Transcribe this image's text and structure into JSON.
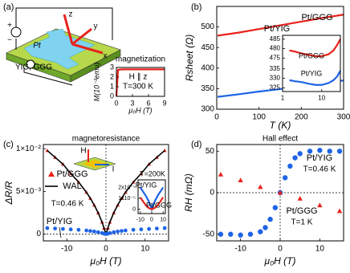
{
  "chart_data": [
    {
      "type": "line",
      "panel_label": "(a)",
      "schematic_labels": [
        "Pt",
        "YIG, GGG",
        "x",
        "y",
        "z",
        "+",
        "−"
      ],
      "title": "magnetization",
      "xlabel": "μ₀H (T)",
      "ylabel": "M(10⁻³emu)",
      "annotations": [
        "H ∥ z",
        "T=300 K"
      ],
      "xlim": [
        0,
        9
      ],
      "ylim": [
        0,
        3
      ],
      "xticks": [
        0,
        3,
        6,
        9
      ],
      "yticks": [
        0,
        1,
        2,
        3
      ],
      "series": [
        {
          "color": "#e8221c",
          "x": [
            0,
            0.3,
            1,
            3,
            5,
            7,
            9
          ],
          "values": [
            0,
            2.75,
            2.8,
            2.8,
            2.8,
            2.8,
            2.8
          ]
        }
      ]
    },
    {
      "type": "line",
      "panel_label": "(b)",
      "xlabel": "T (K)",
      "ylabel": "Rsheet (Ω)",
      "xlim": [
        0,
        300
      ],
      "ylim": [
        300,
        550
      ],
      "xticks": [
        0,
        100,
        200,
        300
      ],
      "yticks": [
        300,
        350,
        400,
        450,
        500
      ],
      "series": [
        {
          "name": "Pt/GGG",
          "color": "#e8221c",
          "x": [
            2,
            50,
            100,
            150,
            200,
            250,
            300
          ],
          "values": [
            479,
            486,
            495,
            504,
            513,
            522,
            530
          ]
        },
        {
          "name": "Pt/YIG",
          "color": "#1e64e6",
          "x": [
            2,
            50,
            100,
            150,
            200,
            250,
            300
          ],
          "values": [
            330,
            336,
            343,
            349,
            356,
            363,
            370
          ]
        }
      ],
      "inset": {
        "type": "broken",
        "xlog": true,
        "xlim": [
          1,
          30
        ],
        "xticks": [
          1,
          10
        ],
        "panels": [
          {
            "ylim": [
              473,
              487
            ],
            "yticks": [
              475,
              480,
              485
            ],
            "series": [
              {
                "name": "Pt/GGG",
                "color": "#e8221c",
                "x": [
                  1.5,
                  2,
                  3,
                  5,
                  7,
                  10,
                  15,
                  20,
                  25,
                  30
                ],
                "values": [
                  479,
                  478.5,
                  477.5,
                  476.5,
                  476,
                  476,
                  477,
                  479,
                  482,
                  485
                ]
              }
            ]
          },
          {
            "ylim": [
              323,
              337
            ],
            "yticks": [
              325,
              330,
              335
            ],
            "series": [
              {
                "name": "Pt/YIG",
                "color": "#1e64e6",
                "x": [
                  1.5,
                  2,
                  3,
                  5,
                  7,
                  10,
                  15,
                  20,
                  25,
                  30
                ],
                "values": [
                  329,
                  328.5,
                  328,
                  327,
                  326.5,
                  326.5,
                  327.5,
                  329,
                  331,
                  334
                ]
              }
            ]
          }
        ]
      }
    },
    {
      "type": "scatter",
      "panel_label": "(c)",
      "title": "magnetoresistance",
      "xlabel": "μ₀H (T)",
      "ylabel": "ΔR/R",
      "schematic_labels": [
        "H",
        "I"
      ],
      "annotations": [
        "T=0.46 K"
      ],
      "xlim": [
        -16,
        16
      ],
      "ylim": [
        -0.0008,
        0.0105
      ],
      "xticks": [
        -10,
        0,
        10
      ],
      "yticks": [
        0,
        {
          "value": 0.005,
          "label": "5×10⁻³"
        },
        {
          "value": 0.01,
          "label": "1×10⁻²"
        }
      ],
      "series": [
        {
          "name": "Pt/GGG",
          "color": "#e8221c",
          "marker": "triangle",
          "x": [
            -15,
            -13,
            -11,
            -9,
            -7,
            -5,
            -4,
            -3,
            -2,
            -1,
            -0.5,
            0,
            0.5,
            1,
            2,
            3,
            4,
            5,
            7,
            9,
            11,
            13,
            15
          ],
          "values": [
            0.0098,
            0.009,
            0.0082,
            0.0071,
            0.0061,
            0.0049,
            0.0042,
            0.0034,
            0.0025,
            0.0014,
            0.0007,
            0,
            0.0007,
            0.0014,
            0.0025,
            0.0034,
            0.0042,
            0.0049,
            0.0061,
            0.0071,
            0.0082,
            0.009,
            0.0098
          ]
        },
        {
          "name": "WAL",
          "color": "#000000",
          "marker": "line",
          "x": [
            -15,
            -13,
            -11,
            -9,
            -7,
            -5,
            -4,
            -3,
            -2,
            -1,
            -0.5,
            0,
            0.5,
            1,
            2,
            3,
            4,
            5,
            7,
            9,
            11,
            13,
            15
          ],
          "values": [
            0.0098,
            0.009,
            0.0082,
            0.0071,
            0.0061,
            0.0049,
            0.0042,
            0.0034,
            0.0025,
            0.0014,
            0.0007,
            0,
            0.0007,
            0.0014,
            0.0025,
            0.0034,
            0.0042,
            0.0049,
            0.0061,
            0.0071,
            0.0082,
            0.009,
            0.0098
          ]
        },
        {
          "name": "Pt/YIG",
          "color": "#1e64e6",
          "marker": "circle",
          "x": [
            -15,
            -13,
            -11,
            -9,
            -7,
            -5,
            -4,
            -3,
            -2,
            -1,
            -0.5,
            0,
            0.5,
            1,
            2,
            3,
            4,
            5,
            7,
            9,
            11,
            13,
            15
          ],
          "values": [
            0.0007,
            0.00065,
            0.0006,
            0.00055,
            0.0005,
            0.00042,
            0.00036,
            0.0003,
            0.00022,
            0.00012,
            5e-05,
            0,
            5e-05,
            0.00012,
            0.00022,
            0.0003,
            0.00036,
            0.00042,
            0.0005,
            0.00055,
            0.0006,
            0.00065,
            0.0007
          ]
        }
      ],
      "inset": {
        "type": "line",
        "annotations": [
          "T=200K"
        ],
        "xlim": [
          -12,
          12
        ],
        "ylim": [
          -4e-06,
          2.7e-05
        ],
        "xticks": [
          -10,
          0,
          10
        ],
        "yticks": [
          0,
          {
            "value": 1e-05,
            "label": "1x10⁻⁵"
          },
          {
            "value": 2e-05,
            "label": "2x10⁻⁵"
          }
        ],
        "series": [
          {
            "name": "Pt/YIG",
            "color": "#1e64e6",
            "x": [
              -10,
              -7.5,
              -5,
              -2.5,
              0,
              2.5,
              5,
              7.5,
              10
            ],
            "values": [
              2e-05,
              1.6e-05,
              1.2e-05,
              7e-06,
              0,
              7e-06,
              1.2e-05,
              1.6e-05,
              2e-05
            ]
          },
          {
            "name": "Pt/GGG",
            "color": "#e8221c",
            "x": [
              -10,
              -7.5,
              -5,
              -2.5,
              0,
              2.5,
              5,
              7.5,
              10
            ],
            "values": [
              1.1e-05,
              7e-06,
              3.5e-06,
              1e-06,
              0,
              1e-06,
              3.5e-06,
              7e-06,
              1.1e-05
            ]
          }
        ]
      }
    },
    {
      "type": "scatter",
      "panel_label": "(d)",
      "title": "Hall effect",
      "xlabel": "μ₀H (T)",
      "ylabel": "RH (mΩ)",
      "annotations": [
        "T=0.46 K",
        "T=1 K"
      ],
      "xlim": [
        -16,
        16
      ],
      "ylim": [
        -58,
        58
      ],
      "xticks": [
        -10,
        0,
        10
      ],
      "yticks": [
        -50,
        0,
        50
      ],
      "series": [
        {
          "name": "Pt/YIG",
          "color": "#1e64e6",
          "marker": "circle",
          "x": [
            -15,
            -12.5,
            -10,
            -7.5,
            -5,
            -3.75,
            -2.5,
            -1.25,
            0,
            1.25,
            2.5,
            3.75,
            5,
            7.5,
            10,
            12.5,
            15
          ],
          "values": [
            -50,
            -50,
            -51,
            -50,
            -47,
            -42,
            -32,
            -18,
            0,
            18,
            32,
            42,
            47,
            50,
            51,
            50,
            50
          ]
        },
        {
          "name": "Pt/GGG",
          "color": "#e8221c",
          "marker": "triangle",
          "x": [
            -15,
            -10,
            -5,
            0,
            5,
            10,
            15
          ],
          "values": [
            22,
            15,
            7,
            0,
            -7,
            -15,
            -22
          ]
        }
      ]
    }
  ]
}
